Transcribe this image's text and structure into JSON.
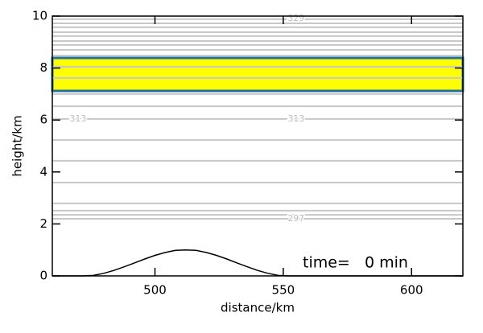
{
  "chart_data": {
    "type": "contour",
    "xlabel": "distance/km",
    "ylabel": "height/km",
    "xlim": [
      460,
      620
    ],
    "ylim": [
      0,
      10
    ],
    "xticks": [
      500,
      550,
      600
    ],
    "yticks": [
      0,
      2,
      4,
      6,
      8,
      10
    ],
    "contour_color": "#c8c8c8",
    "contour_heights": [
      9.88,
      9.72,
      9.57,
      9.38,
      9.23,
      9.04,
      8.89,
      8.7,
      8.48,
      8.05,
      7.62,
      7.0,
      6.53,
      6.04,
      5.23,
      4.43,
      3.59,
      2.79,
      2.51,
      2.35,
      2.2
    ],
    "contour_labels": [
      {
        "text": "329",
        "x": 555,
        "y": 9.9
      },
      {
        "text": "313",
        "x": 470,
        "y": 6.04
      },
      {
        "text": "313",
        "x": 555,
        "y": 6.04
      },
      {
        "text": "297",
        "x": 555,
        "y": 2.2
      }
    ],
    "tracer_band": [
      7.12,
      8.39
    ],
    "tracer_color": "#ffff00",
    "tracer_edge_color": "#1f6fa0",
    "terrain": {
      "color": "#000000",
      "x": [
        460,
        472,
        476,
        480,
        484,
        488,
        492,
        496,
        500,
        504,
        508,
        512,
        516,
        520,
        524,
        528,
        532,
        536,
        540,
        544,
        548,
        552,
        620
      ],
      "values": [
        0,
        0,
        0.02,
        0.1,
        0.21,
        0.35,
        0.5,
        0.65,
        0.79,
        0.9,
        0.98,
        1,
        0.98,
        0.9,
        0.79,
        0.65,
        0.5,
        0.35,
        0.21,
        0.1,
        0.02,
        0,
        0
      ]
    },
    "annotation": "time=   0 min"
  }
}
